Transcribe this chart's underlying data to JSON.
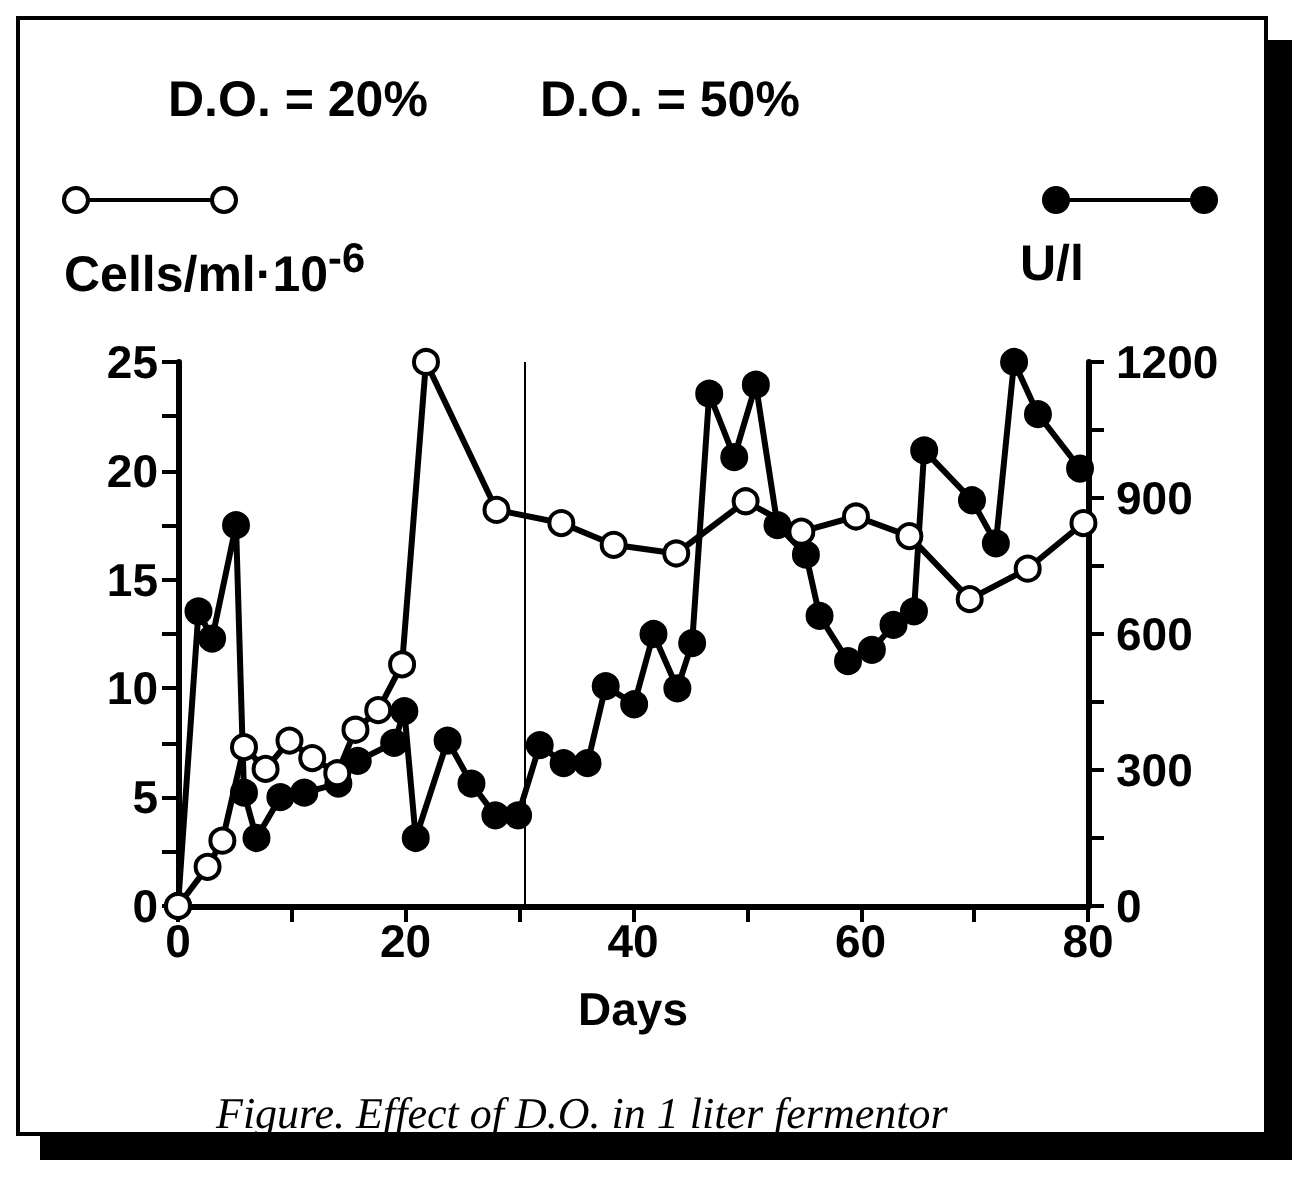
{
  "chart_data": {
    "type": "line",
    "xlabel": "Days",
    "ylabel": "Cells/ml·10$^{-6}$",
    "y2label": "U/l",
    "annotations": [
      "D.O. = 20%",
      "D.O. = 50%",
      "Figure. Effect of D.O. in 1 liter fermentor"
    ],
    "xlim": [
      0,
      80
    ],
    "xticks": [
      0,
      {
        "value": 10,
        "label": null
      },
      20,
      {
        "value": 30,
        "label": null
      },
      40,
      {
        "value": 50,
        "label": null
      },
      60,
      {
        "value": 70,
        "label": null
      },
      80
    ],
    "ylim": [
      0,
      25
    ],
    "yticks": [
      0,
      {
        "value": 2.5,
        "label": null
      },
      5,
      {
        "value": 7.5,
        "label": null
      },
      10,
      {
        "value": 12.5,
        "label": null
      },
      15,
      {
        "value": 17.5,
        "label": null
      },
      20,
      {
        "value": 22.5,
        "label": null
      },
      25
    ],
    "y2lim": [
      0,
      1200
    ],
    "y2ticks": [
      0,
      {
        "value": 150,
        "label": null
      },
      300,
      {
        "value": 450,
        "label": null
      },
      600,
      {
        "value": 750,
        "label": null
      },
      900,
      {
        "value": 1050,
        "label": null
      },
      1200
    ],
    "marker": "circle",
    "grid": false,
    "ref_lines": [
      {
        "axis": "x",
        "value": 30.5,
        "color": "#000000"
      }
    ],
    "series": [
      {
        "color": "#000000",
        "x": [
          0,
          2.6,
          3.9,
          5.8,
          7.7,
          9.8,
          11.8,
          14,
          15.6,
          17.6,
          19.7,
          21.8,
          28,
          33.7,
          38.3,
          43.8,
          49.9,
          54.8,
          59.6,
          64.3,
          69.6,
          74.7,
          79.6
        ],
        "values": [
          0,
          1.8,
          3.0,
          7.3,
          6.3,
          7.6,
          6.8,
          6.1,
          8.1,
          9.0,
          11.1,
          25,
          18.2,
          17.6,
          16.6,
          16.2,
          18.6,
          17.2,
          17.9,
          17.0,
          14.1,
          15.5,
          17.6
        ]
      },
      {
        "color": "#000000",
        "axis": "y2",
        "x": [
          0,
          1.8,
          3.0,
          5.1,
          5.8,
          6.9,
          9.0,
          11.1,
          14.1,
          15.8,
          19.0,
          19.9,
          20.9,
          23.7,
          25.8,
          27.9,
          29.9,
          31.8,
          33.9,
          36.0,
          37.6,
          40.1,
          41.8,
          43.9,
          45.2,
          46.7,
          48.9,
          50.8,
          52.7,
          55.2,
          56.4,
          58.9,
          61.0,
          62.9,
          64.7,
          65.6,
          69.8,
          71.9,
          73.5,
          75.6,
          79.3
        ],
        "values": [
          0,
          650,
          590,
          840,
          250,
          150,
          240,
          250,
          270,
          320,
          360,
          430,
          150,
          365,
          270,
          200,
          200,
          355,
          315,
          315,
          485,
          445,
          600,
          480,
          580,
          1130,
          990,
          1150,
          840,
          775,
          640,
          540,
          565,
          620,
          650,
          1005,
          895,
          800,
          1200,
          1085,
          965
        ]
      }
    ]
  }
}
